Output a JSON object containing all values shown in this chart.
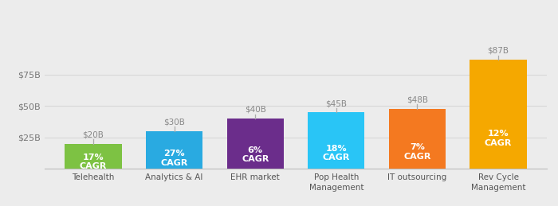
{
  "categories": [
    "Telehealth",
    "Analytics & AI",
    "EHR market",
    "Pop Health\nManagement",
    "IT outsourcing",
    "Rev Cycle\nManagement"
  ],
  "values": [
    20,
    30,
    40,
    45,
    48,
    87
  ],
  "cagr_labels": [
    "17%\nCAGR",
    "27%\nCAGR",
    "6%\nCAGR",
    "18%\nCAGR",
    "7%\nCAGR",
    "12%\nCAGR"
  ],
  "bar_colors": [
    "#7dc243",
    "#29aae1",
    "#6b2d8b",
    "#29c5f6",
    "#f47920",
    "#f5a800"
  ],
  "value_labels": [
    "$20B",
    "$30B",
    "$40B",
    "$45B",
    "$48B",
    "$87B"
  ],
  "ylim": [
    0,
    105
  ],
  "yticks": [
    25,
    50,
    75
  ],
  "ytick_labels": [
    "$25B",
    "$50B",
    "$75B"
  ],
  "background_color": "#ececec",
  "cagr_text_color": "#ffffff",
  "value_label_color": "#888888",
  "xlabel_color": "#555555",
  "grid_color": "#d8d8d8",
  "line_color": "#aaaaaa",
  "figsize": [
    7.0,
    2.59
  ],
  "dpi": 100
}
